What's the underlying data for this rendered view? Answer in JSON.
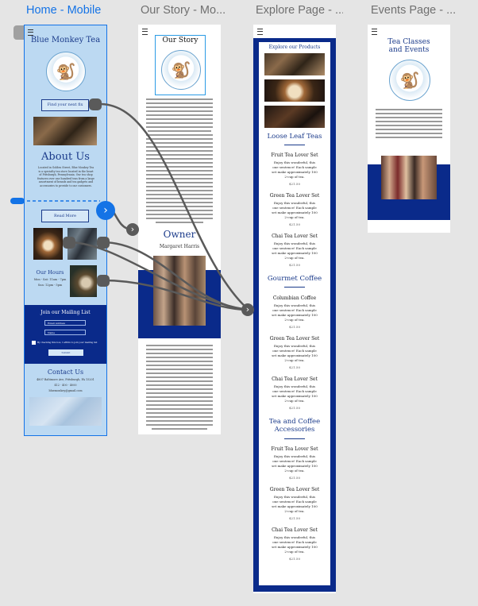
{
  "artboards": [
    {
      "title": "Home - Mobile",
      "active": true
    },
    {
      "title": "Our Story - Mo..."
    },
    {
      "title": "Explore Page - ..."
    },
    {
      "title": "Events Page - ..."
    }
  ],
  "home": {
    "brand": "Blue Monkey Tea",
    "find_button": "Find your next fix",
    "about_title": "About Us",
    "about_body": "Located in Golden Street, Blue Monkey Tea is a specialty tea store located in the heart of Pittsburgh, Pennsylvania. Our tea shop features over one hundred teas from a large assortment of brands and tea gadgets and accessories to provide to our customers.",
    "read_more": "Read More",
    "our_hours_title": "Our Hours",
    "hours_line1": "Mon - Sat: 11am - 7pm",
    "hours_line2": "Sun: 12pm - 5pm",
    "mailing_title": "Join our Mailing List",
    "mailing_field1": "Email Address",
    "mailing_field2": "Name",
    "mailing_checkbox": "By checking this box, I affirm to join your mailing list",
    "mailing_submit": "Submit",
    "contact_title": "Contact Us",
    "contact_address": "4807 Baltimore Ave, Pittsburgh, PA 15201",
    "contact_phone": "412 · 400 · 4000",
    "contact_email": "bluemonkey@gmail.com"
  },
  "story": {
    "title": "Our Story",
    "owner_title": "Owner",
    "owner_name": "Margaret Harris"
  },
  "explore": {
    "header": "Explore our Products",
    "sections": [
      {
        "title": "Loose Leaf Teas",
        "items": [
          {
            "name": "Fruit Tea Lover Set",
            "desc": "Enjoy this wonderful, this one sentence! Each sample set make approximately 100 2-cup of tea.",
            "price": "$21.50"
          },
          {
            "name": "Green Tea Lover Set",
            "desc": "Enjoy this wonderful, this one sentence! Each sample set make approximately 100 2-cup of tea.",
            "price": "$21.50"
          },
          {
            "name": "Chai Tea Lover Set",
            "desc": "Enjoy this wonderful, this one sentence! Each sample set make approximately 100 2-cup of tea.",
            "price": "$21.50"
          }
        ]
      },
      {
        "title": "Gourmet Coffee",
        "items": [
          {
            "name": "Columbian Coffee",
            "desc": "Enjoy this wonderful, this one sentence! Each sample set make approximately 100 2-cup of tea.",
            "price": "$21.50"
          },
          {
            "name": "Green Tea Lover Set",
            "desc": "Enjoy this wonderful, this one sentence! Each sample set make approximately 100 2-cup of tea.",
            "price": "$21.50"
          },
          {
            "name": "Chai Tea Lover Set",
            "desc": "Enjoy this wonderful, this one sentence! Each sample set make approximately 100 2-cup of tea.",
            "price": "$21.50"
          }
        ]
      },
      {
        "title": "Tea and Coffee Accessories",
        "items": [
          {
            "name": "Fruit Tea Lover Set",
            "desc": "Enjoy this wonderful, this one sentence! Each sample set make approximately 100 2-cup of tea.",
            "price": "$21.50"
          },
          {
            "name": "Green Tea Lover Set",
            "desc": "Enjoy this wonderful, this one sentence! Each sample set make approximately 100 2-cup of tea.",
            "price": "$21.50"
          },
          {
            "name": "Chai Tea Lover Set",
            "desc": "Enjoy this wonderful, this one sentence! Each sample set make approximately 100 2-cup of tea.",
            "price": "$21.50"
          }
        ]
      }
    ]
  },
  "events": {
    "title": "Tea Classes and Events"
  },
  "colors": {
    "canvas": "#e5e5e5",
    "selection": "#1473e6",
    "home_bg": "#bcd9f2",
    "navy": "#0a2a8a",
    "wire": "#5a5a5a"
  }
}
